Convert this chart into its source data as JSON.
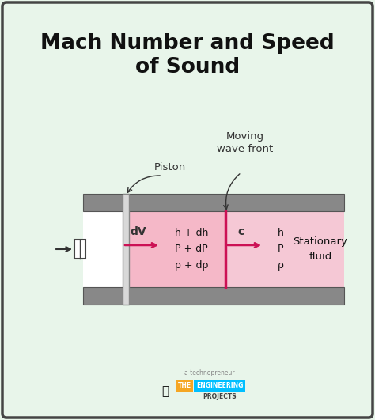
{
  "title_line1": "Mach Number and Speed",
  "title_line2": "of Sound",
  "title_fontsize": 19,
  "bg_color": "#e8f5ea",
  "border_color": "#444444",
  "gray_bar_color": "#888888",
  "pink_left": "#f5b8c8",
  "pink_right": "#f5c8d5",
  "wave_front_color": "#cc1155",
  "label_piston": "Piston",
  "label_wave": "Moving\nwave front",
  "label_dV": "dV",
  "label_left_fluid": "h + dh\nP + dP\nρ + dρ",
  "label_c": "c",
  "label_right_fluid": "h\nP\nρ",
  "label_stationary": "Stationary\nfluid",
  "techno_text": "a technopreneur",
  "the_color": "#F5A623",
  "eng_color": "#00BFFF",
  "proj_color": "#444444"
}
